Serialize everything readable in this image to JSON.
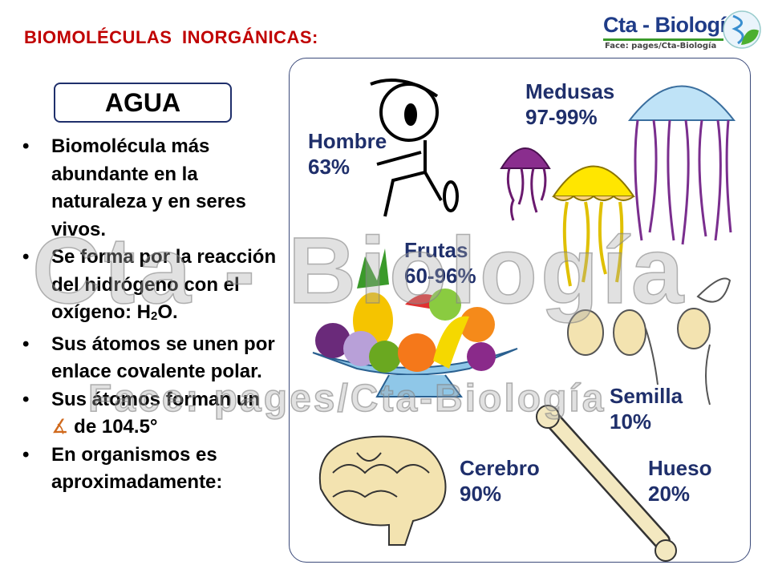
{
  "slide": {
    "title": "BIOMOLÉCULAS INORGÁNICAS:",
    "logo": {
      "main": "Cta - Biología",
      "sub": "Face:  pages/Cta-Biología"
    },
    "watermark": {
      "main": "Cta - Biología",
      "sub": "Face:  pages/Cta-Biología"
    },
    "box_title": "AGUA",
    "bullets": [
      {
        "text": "Biomolécula más abundante en la naturaleza y en seres vivos."
      },
      {
        "text": "Se forma por la reacción del hidrógeno con el oxígeno: H",
        "sub": "2",
        "after": "O."
      },
      {
        "text": "Sus átomos se unen por enlace covalente polar."
      },
      {
        "text": "Sus átomos forman un ",
        "symbol": "∡",
        "after": " de 104.5°"
      },
      {
        "text": "En organismos es aproximadamente:"
      }
    ],
    "bullet_char": "•",
    "labels": {
      "hombre": {
        "name": "Hombre",
        "value": "63%"
      },
      "medusas": {
        "name": "Medusas",
        "value": "97-99%"
      },
      "frutas": {
        "name": "Frutas",
        "value": "60-96%"
      },
      "semilla": {
        "name": "Semilla",
        "value": "10%"
      },
      "cerebro": {
        "name": "Cerebro",
        "value": "90%"
      },
      "hueso": {
        "name": "Hueso",
        "value": "20%"
      }
    },
    "colors": {
      "title": "#c00000",
      "label": "#1f2f6b",
      "angle_symbol": "#d0691c"
    }
  }
}
